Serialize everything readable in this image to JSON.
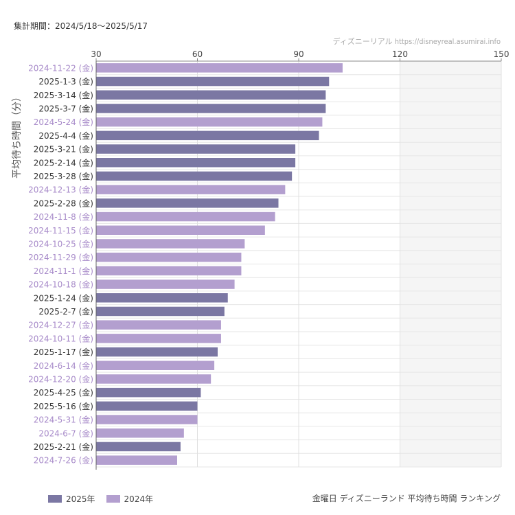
{
  "period_text": "集計期間：2024/5/18〜2025/5/17",
  "credit_text": "ディズニーリアル https://disneyreal.asumirai.info",
  "footer_text": "金曜日 ディズニーランド 平均待ち時間 ランキング",
  "colors": {
    "y2025": "#7b77a3",
    "y2024": "#b39fcf",
    "label2025": "#333333",
    "label2024": "#a78ac9"
  },
  "chart_data": {
    "type": "bar",
    "orientation": "horizontal",
    "xlim": [
      30,
      150
    ],
    "xticks": [
      30,
      60,
      90,
      120,
      150
    ],
    "shaded_from": 120,
    "ylabel": "平均待ち時間（分）",
    "grid": true,
    "legend_position": "bottom-left",
    "categories": [
      "2024-11-22 (金)",
      "2025-1-3 (金)",
      "2025-3-14 (金)",
      "2025-3-7 (金)",
      "2024-5-24 (金)",
      "2025-4-4 (金)",
      "2025-3-21 (金)",
      "2025-2-14 (金)",
      "2025-3-28 (金)",
      "2024-12-13 (金)",
      "2025-2-28 (金)",
      "2024-11-8 (金)",
      "2024-11-15 (金)",
      "2024-10-25 (金)",
      "2024-11-29 (金)",
      "2024-11-1 (金)",
      "2024-10-18 (金)",
      "2025-1-24 (金)",
      "2025-2-7 (金)",
      "2024-12-27 (金)",
      "2024-10-11 (金)",
      "2025-1-17 (金)",
      "2024-6-14 (金)",
      "2024-12-20 (金)",
      "2025-4-25 (金)",
      "2025-5-16 (金)",
      "2024-5-31 (金)",
      "2024-6-7 (金)",
      "2025-2-21 (金)",
      "2024-7-26 (金)"
    ],
    "values": [
      103,
      99,
      98,
      98,
      97,
      96,
      89,
      89,
      88,
      86,
      84,
      83,
      80,
      74,
      73,
      73,
      71,
      69,
      68,
      67,
      67,
      66,
      65,
      64,
      61,
      60,
      60,
      56,
      55,
      54
    ],
    "years": [
      "2024",
      "2025",
      "2025",
      "2025",
      "2024",
      "2025",
      "2025",
      "2025",
      "2025",
      "2024",
      "2025",
      "2024",
      "2024",
      "2024",
      "2024",
      "2024",
      "2024",
      "2025",
      "2025",
      "2024",
      "2024",
      "2025",
      "2024",
      "2024",
      "2025",
      "2025",
      "2024",
      "2024",
      "2025",
      "2024"
    ],
    "series": [
      {
        "name": "2025年",
        "key": "2025"
      },
      {
        "name": "2024年",
        "key": "2024"
      }
    ]
  }
}
